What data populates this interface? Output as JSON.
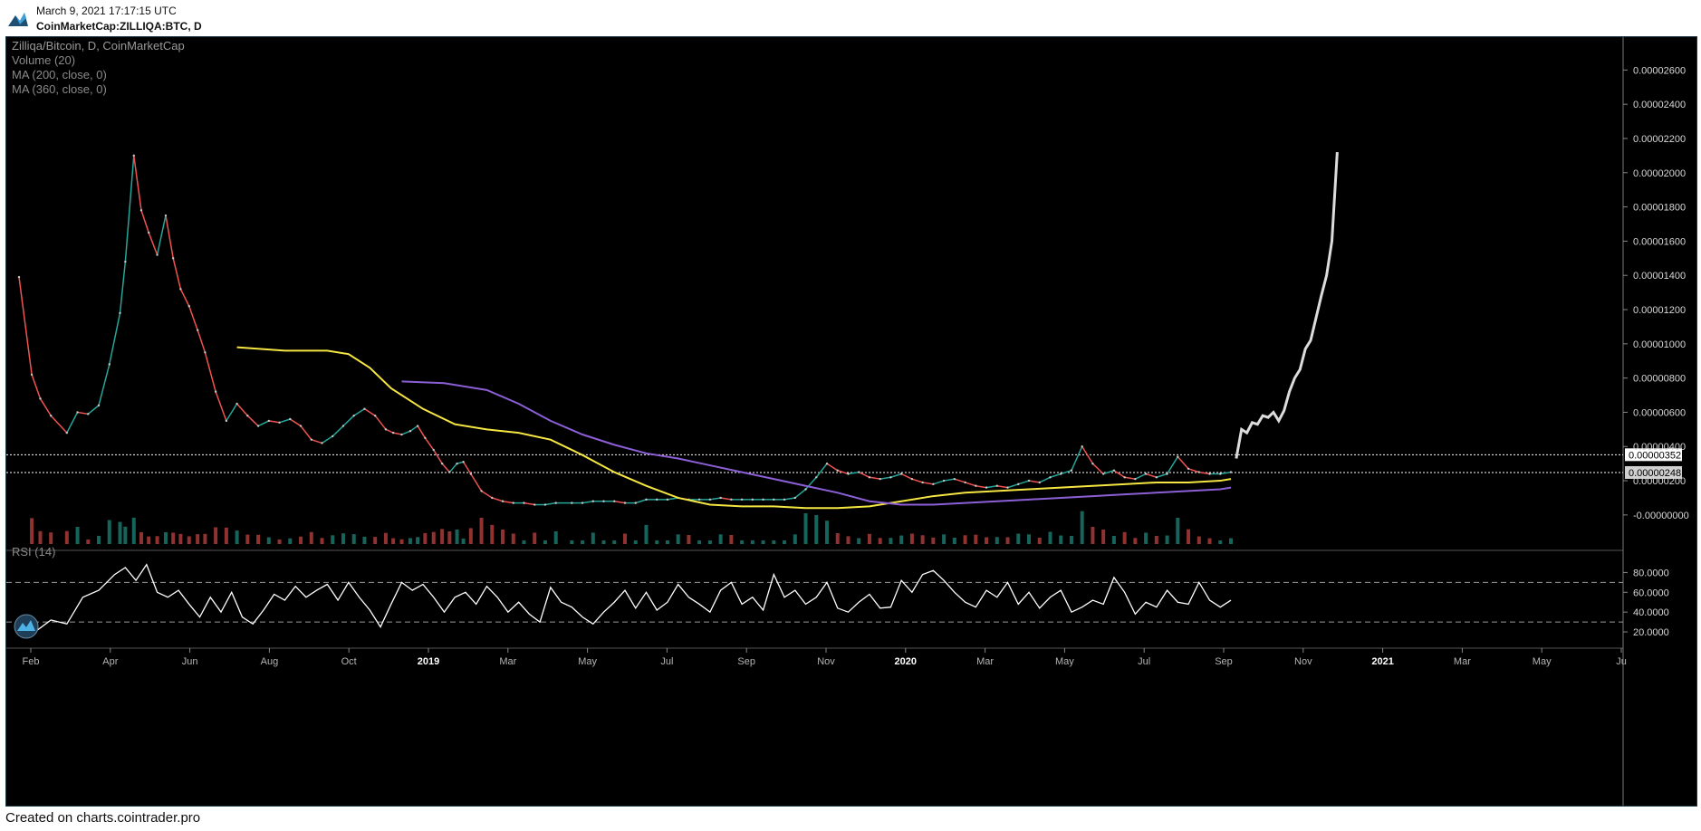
{
  "header": {
    "date": "March 9, 2021 17:17:15 UTC",
    "symbol": "CoinMarketCap:ZILLIQA:BTC, D"
  },
  "footer": {
    "text": "Created on charts.cointrader.pro"
  },
  "colors": {
    "background": "#000000",
    "up_candle": "#26a69a",
    "down_candle": "#ef5350",
    "forecast": "#dcdcdc",
    "ma200": "#f5e642",
    "ma360": "#8c5fd6",
    "rsi": "#ffffff",
    "level_line": "#ffffff"
  },
  "chart_data": [
    {
      "type": "line",
      "title": "Zilliqa/Bitcoin, D, CoinMarketCap",
      "indicators": [
        "Volume (20)",
        "MA (200, close, 0)",
        "MA (360, close, 0)"
      ],
      "y_ticks": [
        "0.00002600",
        "0.00002400",
        "0.00002200",
        "0.00002000",
        "0.00001800",
        "0.00001600",
        "0.00001400",
        "0.00001200",
        "0.00001000",
        "0.00000800",
        "0.00000600",
        "0.00000400",
        "0.00000200",
        "-0.00000000"
      ],
      "ylim": [
        -1.7e-06,
        2.75e-05
      ],
      "x_ticks": [
        "Feb",
        "Apr",
        "Jun",
        "Aug",
        "Oct",
        "2019",
        "Mar",
        "May",
        "Jul",
        "Sep",
        "Nov",
        "2020",
        "Mar",
        "May",
        "Jul",
        "Sep",
        "Nov",
        "2021",
        "Mar",
        "May",
        "Ju"
      ],
      "x_ticks_bold": [
        "2019",
        "2020",
        "2021"
      ],
      "price_tags": [
        {
          "label": "0.00000352",
          "value": 3.52e-06
        },
        {
          "label": "0.00000248",
          "value": 2.48e-06
        }
      ],
      "series": [
        {
          "name": "Zilliqa/Bitcoin",
          "x": [
            0,
            12,
            20,
            30,
            45,
            55,
            65,
            75,
            85,
            95,
            100,
            108,
            115,
            122,
            130,
            138,
            145,
            152,
            160,
            168,
            175,
            185,
            195,
            205,
            215,
            225,
            235,
            245,
            255,
            265,
            275,
            285,
            295,
            305,
            315,
            325,
            335,
            345,
            352,
            360,
            368,
            375,
            382,
            390,
            398,
            405,
            412,
            418,
            425,
            435,
            445,
            455,
            465,
            475,
            485,
            495,
            505,
            520,
            530,
            540,
            550,
            560,
            570,
            580,
            590,
            600,
            610,
            620,
            630,
            640,
            650,
            660,
            670,
            680,
            690,
            700,
            710,
            720,
            730,
            740,
            750,
            760,
            770,
            780,
            790,
            800,
            810,
            820,
            830,
            840,
            850,
            860,
            870,
            880,
            890,
            900,
            910,
            920,
            930,
            940,
            950,
            960,
            970,
            980,
            990,
            1000,
            1010,
            1020,
            1030,
            1040,
            1050,
            1060,
            1070,
            1080,
            1090,
            1100,
            1110,
            1120,
            1130,
            1140
          ],
          "values": [
            1.39e-05,
            8.2e-06,
            6.8e-06,
            5.8e-06,
            4.8e-06,
            6e-06,
            5.9e-06,
            6.4e-06,
            8.8e-06,
            1.18e-05,
            1.48e-05,
            2.1e-05,
            1.78e-05,
            1.65e-05,
            1.52e-05,
            1.75e-05,
            1.5e-05,
            1.32e-05,
            1.22e-05,
            1.08e-05,
            9.5e-06,
            7.2e-06,
            5.5e-06,
            6.5e-06,
            5.8e-06,
            5.2e-06,
            5.5e-06,
            5.4e-06,
            5.6e-06,
            5.2e-06,
            4.4e-06,
            4.2e-06,
            4.6e-06,
            5.2e-06,
            5.8e-06,
            6.2e-06,
            5.8e-06,
            5e-06,
            4.8e-06,
            4.7e-06,
            4.9e-06,
            5.2e-06,
            4.5e-06,
            3.8e-06,
            3e-06,
            2.5e-06,
            3e-06,
            3.1e-06,
            2.4e-06,
            1.4e-06,
            1e-06,
            8e-07,
            7e-07,
            7e-07,
            6e-07,
            6e-07,
            7e-07,
            7e-07,
            7e-07,
            8e-07,
            8e-07,
            8e-07,
            7e-07,
            7e-07,
            9e-07,
            9e-07,
            9e-07,
            1e-06,
            9e-07,
            9e-07,
            9e-07,
            1e-06,
            9e-07,
            9e-07,
            9e-07,
            9e-07,
            9e-07,
            9e-07,
            1e-06,
            1.5e-06,
            2.2e-06,
            3e-06,
            2.6e-06,
            2.4e-06,
            2.5e-06,
            2.2e-06,
            2.1e-06,
            2.2e-06,
            2.4e-06,
            2.1e-06,
            1.9e-06,
            1.8e-06,
            2e-06,
            2.1e-06,
            1.9e-06,
            1.7e-06,
            1.6e-06,
            1.7e-06,
            1.6e-06,
            1.8e-06,
            2e-06,
            1.9e-06,
            2.2e-06,
            2.4e-06,
            2.6e-06,
            4e-06,
            3e-06,
            2.4e-06,
            2.6e-06,
            2.2e-06,
            2.1e-06,
            2.4e-06,
            2.2e-06,
            2.4e-06,
            3.4e-06,
            2.7e-06,
            2.5e-06,
            2.4e-06,
            2.4e-06,
            2.5e-06
          ]
        },
        {
          "name": "MA (200, close, 0)",
          "x": [
            205,
            250,
            290,
            310,
            330,
            350,
            380,
            410,
            440,
            470,
            500,
            530,
            560,
            590,
            620,
            650,
            680,
            710,
            740,
            770,
            800,
            830,
            860,
            890,
            920,
            950,
            980,
            1010,
            1040,
            1070,
            1100,
            1130,
            1140
          ],
          "values": [
            9.8e-06,
            9.6e-06,
            9.6e-06,
            9.4e-06,
            8.6e-06,
            7.4e-06,
            6.2e-06,
            5.3e-06,
            5e-06,
            4.8e-06,
            4.4e-06,
            3.5e-06,
            2.5e-06,
            1.7e-06,
            1e-06,
            6e-07,
            5e-07,
            5e-07,
            4e-07,
            4e-07,
            5e-07,
            8e-07,
            1.1e-06,
            1.3e-06,
            1.4e-06,
            1.5e-06,
            1.6e-06,
            1.7e-06,
            1.8e-06,
            1.9e-06,
            1.9e-06,
            2e-06,
            2.1e-06
          ]
        },
        {
          "name": "MA (360, close, 0)",
          "x": [
            360,
            400,
            440,
            470,
            500,
            530,
            560,
            590,
            620,
            650,
            680,
            710,
            740,
            770,
            800,
            830,
            860,
            890,
            920,
            950,
            980,
            1010,
            1040,
            1070,
            1100,
            1130,
            1140
          ],
          "values": [
            7.8e-06,
            7.7e-06,
            7.3e-06,
            6.5e-06,
            5.5e-06,
            4.7e-06,
            4.1e-06,
            3.6e-06,
            3.3e-06,
            2.9e-06,
            2.5e-06,
            2.1e-06,
            1.7e-06,
            1.3e-06,
            8e-07,
            6e-07,
            6e-07,
            7e-07,
            8e-07,
            9e-07,
            1e-06,
            1.1e-06,
            1.2e-06,
            1.3e-06,
            1.4e-06,
            1.5e-06,
            1.6e-06
          ]
        },
        {
          "name": "forecast",
          "x": [
            1145,
            1150,
            1155,
            1160,
            1165,
            1170,
            1175,
            1180,
            1185,
            1190,
            1195,
            1200,
            1205,
            1210,
            1215,
            1220,
            1225,
            1230,
            1235,
            1240
          ],
          "values": [
            3.3e-06,
            5e-06,
            4.8e-06,
            5.4e-06,
            5.3e-06,
            5.8e-06,
            5.7e-06,
            6e-06,
            5.5e-06,
            6.1e-06,
            7.2e-06,
            8e-06,
            8.5e-06,
            9.7e-06,
            1.02e-05,
            1.15e-05,
            1.28e-05,
            1.4e-05,
            1.6e-05,
            2.12e-05
          ]
        }
      ]
    },
    {
      "type": "line",
      "title": "RSI (14)",
      "y_ticks": [
        "80.0000",
        "60.0000",
        "40.0000",
        "20.0000"
      ],
      "ylim": [
        10,
        95
      ],
      "levels": [
        70,
        30
      ],
      "series": [
        {
          "name": "RSI (14)",
          "x": [
            0,
            15,
            30,
            45,
            60,
            75,
            90,
            100,
            110,
            120,
            130,
            140,
            150,
            160,
            170,
            180,
            190,
            200,
            210,
            220,
            230,
            240,
            250,
            260,
            270,
            280,
            290,
            300,
            310,
            320,
            330,
            340,
            350,
            360,
            370,
            380,
            390,
            400,
            410,
            420,
            430,
            440,
            450,
            460,
            470,
            480,
            490,
            500,
            510,
            520,
            530,
            540,
            550,
            560,
            570,
            580,
            590,
            600,
            610,
            620,
            630,
            640,
            650,
            660,
            670,
            680,
            690,
            700,
            710,
            720,
            730,
            740,
            750,
            760,
            770,
            780,
            790,
            800,
            810,
            820,
            830,
            840,
            850,
            860,
            870,
            880,
            890,
            900,
            910,
            920,
            930,
            940,
            950,
            960,
            970,
            980,
            990,
            1000,
            1010,
            1020,
            1030,
            1040,
            1050,
            1060,
            1070,
            1080,
            1090,
            1100,
            1110,
            1120,
            1130,
            1140
          ],
          "values": [
            25,
            20,
            32,
            28,
            55,
            62,
            78,
            85,
            72,
            88,
            60,
            55,
            62,
            48,
            35,
            55,
            40,
            60,
            35,
            28,
            42,
            58,
            52,
            66,
            55,
            62,
            68,
            52,
            70,
            55,
            42,
            25,
            48,
            70,
            62,
            68,
            55,
            40,
            55,
            60,
            48,
            66,
            55,
            40,
            50,
            38,
            30,
            65,
            50,
            45,
            35,
            28,
            40,
            50,
            62,
            44,
            60,
            42,
            50,
            68,
            55,
            48,
            40,
            62,
            70,
            48,
            55,
            42,
            78,
            55,
            62,
            48,
            55,
            70,
            44,
            40,
            50,
            58,
            44,
            45,
            72,
            60,
            78,
            82,
            72,
            60,
            50,
            45,
            62,
            55,
            70,
            48,
            60,
            44,
            55,
            62,
            40,
            45,
            52,
            48,
            75,
            60,
            38,
            50,
            45,
            62,
            50,
            48,
            70,
            52,
            45,
            52
          ]
        }
      ]
    }
  ]
}
